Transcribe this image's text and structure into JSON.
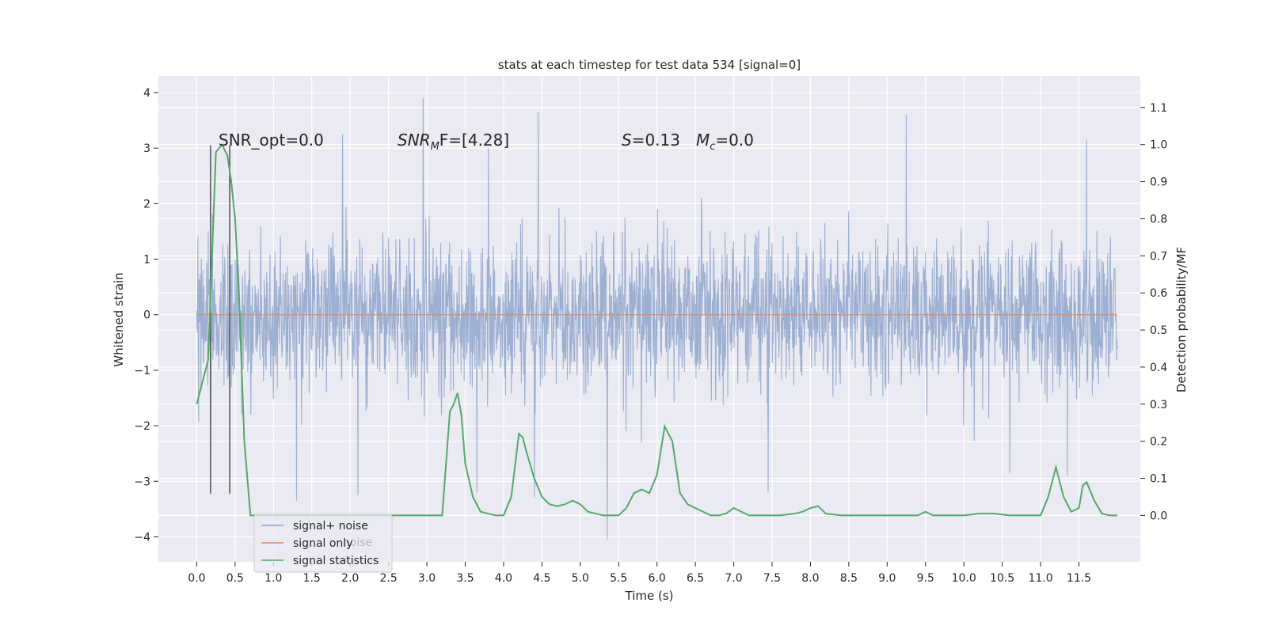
{
  "chart_data": {
    "type": "line",
    "title": "stats at each timestep for test data 534 [signal=0]",
    "xlabel": "Time (s)",
    "ylabel": "Whitened strain",
    "y2label": "Detection probability/MF",
    "xlim": [
      -0.5,
      12.3
    ],
    "ylim": [
      -4.45,
      4.3
    ],
    "y2lim": [
      -0.125,
      1.185
    ],
    "xticks": [
      0.0,
      0.5,
      1.0,
      1.5,
      2.0,
      2.5,
      3.0,
      3.5,
      4.0,
      4.5,
      5.0,
      5.5,
      6.0,
      6.5,
      7.0,
      7.5,
      8.0,
      8.5,
      9.0,
      9.5,
      10.0,
      10.5,
      11.0,
      11.5
    ],
    "xtick_labels": [
      "0.0",
      "0.5",
      "1.0",
      "1.5",
      "2.0",
      "2.5",
      "3.0",
      "3.5",
      "4.0",
      "4.5",
      "5.0",
      "5.5",
      "6.0",
      "6.5",
      "7.0",
      "7.5",
      "8.0",
      "8.5",
      "9.0",
      "9.5",
      "10.0",
      "10.5",
      "11.0",
      "11.5"
    ],
    "yticks": [
      -4,
      -3,
      -2,
      -1,
      0,
      1,
      2,
      3,
      4
    ],
    "ytick_labels": [
      "−4",
      "−3",
      "−2",
      "−1",
      "0",
      "1",
      "2",
      "3",
      "4"
    ],
    "y2ticks": [
      0.0,
      0.1,
      0.2,
      0.3,
      0.4,
      0.5,
      0.6,
      0.7,
      0.8,
      0.9,
      1.0,
      1.1
    ],
    "y2tick_labels": [
      "0.0",
      "0.1",
      "0.2",
      "0.3",
      "0.4",
      "0.5",
      "0.6",
      "0.7",
      "0.8",
      "0.9",
      "1.0",
      "1.1"
    ],
    "grid": true,
    "legend_placement": "lower-left",
    "annotations": {
      "snr_opt": "SNR_opt=0.0",
      "snr_mf_main": "SNR",
      "snr_mf_sub": "M",
      "snr_mf_rest": "F=[4.28]",
      "s_main": "S",
      "s_rest": "=0.13",
      "mc_main": "M",
      "mc_sub": "c",
      "mc_rest": "=0.0"
    },
    "hidden_legend_text": "noise",
    "series": [
      {
        "name": "signal+ noise",
        "color": "#8fa4cb",
        "kind": "noise",
        "x_range": [
          0.0,
          12.0
        ],
        "envelope_typical": [
          -1.8,
          1.8
        ],
        "spikes": [
          {
            "x": 2.95,
            "y": 3.9
          },
          {
            "x": 4.45,
            "y": 3.65
          },
          {
            "x": 9.25,
            "y": 3.6
          },
          {
            "x": 1.9,
            "y": 3.25
          },
          {
            "x": 11.6,
            "y": 3.15
          },
          {
            "x": 3.8,
            "y": 3.0
          },
          {
            "x": 5.35,
            "y": -4.05
          },
          {
            "x": 1.3,
            "y": -3.35
          },
          {
            "x": 4.4,
            "y": -3.3
          },
          {
            "x": 2.1,
            "y": -3.25
          },
          {
            "x": 3.65,
            "y": -3.2
          },
          {
            "x": 7.45,
            "y": -3.2
          },
          {
            "x": 0.18,
            "y": -2.55
          },
          {
            "x": 11.35,
            "y": -2.9
          },
          {
            "x": 10.6,
            "y": -2.85
          }
        ]
      },
      {
        "name": "signal only",
        "color": "#dd8452",
        "x": [
          0.0,
          12.0
        ],
        "y": [
          0.0,
          0.0
        ]
      },
      {
        "name": "signal statistics",
        "color": "#55a868",
        "axis": "right",
        "x": [
          0.0,
          0.15,
          0.25,
          0.33,
          0.4,
          0.45,
          0.5,
          0.55,
          0.62,
          0.7,
          1.0,
          2.0,
          3.0,
          3.2,
          3.3,
          3.35,
          3.4,
          3.45,
          3.5,
          3.6,
          3.7,
          3.9,
          4.0,
          4.1,
          4.2,
          4.25,
          4.3,
          4.4,
          4.5,
          4.6,
          4.7,
          4.8,
          4.9,
          5.0,
          5.1,
          5.3,
          5.5,
          5.6,
          5.7,
          5.8,
          5.9,
          6.0,
          6.1,
          6.2,
          6.3,
          6.4,
          6.5,
          6.6,
          6.7,
          6.8,
          6.9,
          7.0,
          7.1,
          7.2,
          7.4,
          7.6,
          7.8,
          7.9,
          8.0,
          8.1,
          8.2,
          8.4,
          8.6,
          8.8,
          9.0,
          9.2,
          9.4,
          9.5,
          9.6,
          9.8,
          10.0,
          10.2,
          10.4,
          10.6,
          10.8,
          11.0,
          11.1,
          11.2,
          11.3,
          11.4,
          11.5,
          11.55,
          11.6,
          11.7,
          11.8,
          11.9,
          12.0
        ],
        "y": [
          0.3,
          0.42,
          0.98,
          1.0,
          0.97,
          0.9,
          0.8,
          0.6,
          0.2,
          0.0,
          0.0,
          0.0,
          0.0,
          0.0,
          0.28,
          0.3,
          0.33,
          0.27,
          0.14,
          0.05,
          0.01,
          0.0,
          0.0,
          0.05,
          0.22,
          0.21,
          0.17,
          0.1,
          0.05,
          0.03,
          0.025,
          0.03,
          0.04,
          0.03,
          0.01,
          0.0,
          0.0,
          0.02,
          0.06,
          0.07,
          0.06,
          0.11,
          0.24,
          0.2,
          0.06,
          0.03,
          0.02,
          0.01,
          0.0,
          0.0,
          0.005,
          0.02,
          0.01,
          0.0,
          0.0,
          0.0,
          0.005,
          0.01,
          0.02,
          0.025,
          0.005,
          0.0,
          0.0,
          0.0,
          0.0,
          0.0,
          0.0,
          0.01,
          0.0,
          0.0,
          0.0,
          0.005,
          0.005,
          0.0,
          0.0,
          0.0,
          0.05,
          0.13,
          0.05,
          0.01,
          0.02,
          0.08,
          0.09,
          0.04,
          0.005,
          0.0,
          0.0
        ]
      }
    ],
    "vertical_markers": {
      "color": "#505050",
      "x": [
        0.18,
        0.43
      ],
      "y_range": [
        -3.22,
        3.05
      ]
    }
  }
}
